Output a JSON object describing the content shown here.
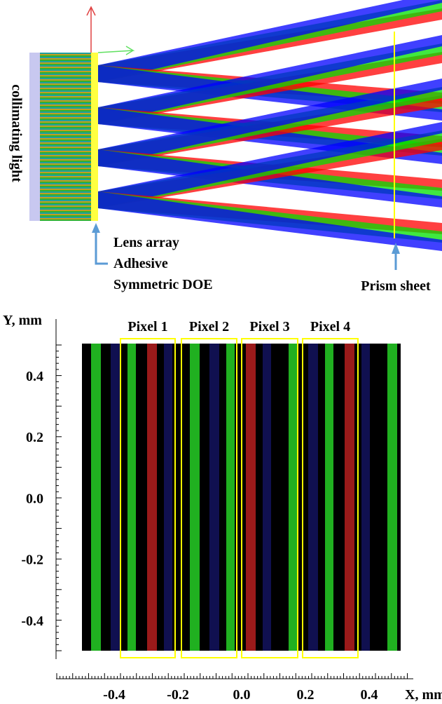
{
  "top": {
    "side_label": "collimating light",
    "element_labels": [
      "Lens array",
      "Adhesive",
      "Symmetric DOE"
    ],
    "prism_label": "Prism sheet"
  },
  "bottom": {
    "y_axis_label": "Y, mm",
    "x_axis_label": "X, mm",
    "pixels": [
      "Pixel 1",
      "Pixel 2",
      "Pixel 3",
      "Pixel 4"
    ],
    "xticks": [
      "-0.4",
      "-0.2",
      "0.0",
      "0.2",
      "0.4"
    ],
    "yticks": [
      "0.4",
      "0.2",
      "0.0",
      "-0.2",
      "-0.4"
    ]
  }
}
